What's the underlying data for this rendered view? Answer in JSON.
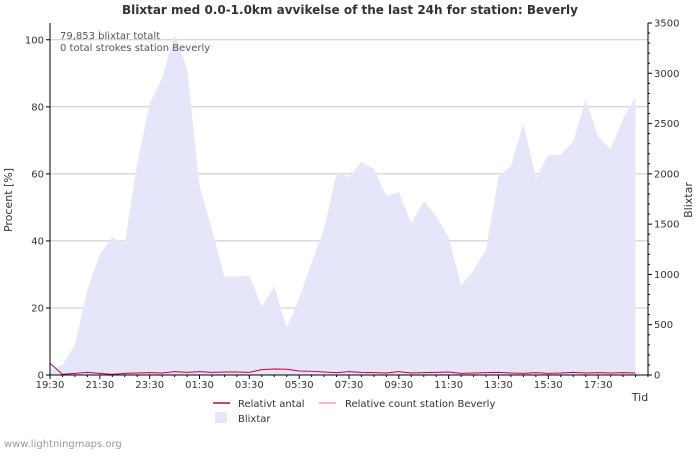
{
  "chart_data": {
    "type": "area",
    "title": "Blixtar med 0.0-1.0km avvikelse of the last 24h for station: Beverly",
    "ylabel_left": "Procent   [%]",
    "ylabel_right": "Blixtar",
    "xlabel": "Tid",
    "annotations": [
      "79,853 blixtar totalt",
      "0 total strokes station Beverly"
    ],
    "left_axis": {
      "min": 0,
      "max": 105,
      "ticks": [
        0,
        20,
        40,
        60,
        80,
        100
      ]
    },
    "right_axis": {
      "min": 0,
      "max": 3500,
      "ticks": [
        0,
        500,
        1000,
        1500,
        2000,
        2500,
        3000,
        3500
      ]
    },
    "x_ticks": [
      "19:30",
      "21:30",
      "23:30",
      "01:30",
      "03:30",
      "05:30",
      "07:30",
      "09:30",
      "11:30",
      "13:30",
      "15:30",
      "17:30"
    ],
    "legend": [
      {
        "label": "Relativt antal",
        "style": "line",
        "color": "#cc0033"
      },
      {
        "label": "Relative count station Beverly",
        "style": "line",
        "color": "#f0a0b0"
      },
      {
        "label": "Blixtar",
        "style": "area",
        "color": "#e6e6fa"
      }
    ],
    "series": [
      {
        "name": "Blixtar",
        "axis": "right",
        "x_hours": [
          0,
          0.5,
          1,
          1.5,
          2,
          2.5,
          3,
          3.5,
          4,
          4.5,
          5,
          5.5,
          6,
          6.5,
          7,
          7.5,
          8,
          8.5,
          9,
          9.5,
          10,
          10.5,
          11,
          11.5,
          12,
          12.5,
          13,
          13.5,
          14,
          14.5,
          15,
          15.5,
          16,
          16.5,
          17,
          17.5,
          18,
          18.5,
          19,
          19.5,
          20,
          20.5,
          21,
          21.5,
          22,
          22.5,
          23,
          23.5
        ],
        "values": [
          50,
          100,
          300,
          850,
          1200,
          1370,
          1310,
          2100,
          2700,
          2950,
          3380,
          3050,
          1880,
          1450,
          980,
          980,
          990,
          680,
          880,
          470,
          760,
          1120,
          1450,
          2010,
          1970,
          2120,
          2050,
          1780,
          1820,
          1510,
          1730,
          1580,
          1370,
          890,
          1040,
          1250,
          1970,
          2080,
          2500,
          1960,
          2190,
          2190,
          2320,
          2740,
          2370,
          2250,
          2550,
          2760
        ]
      },
      {
        "name": "Relativt antal",
        "axis": "left",
        "x_hours": [
          0,
          0.5,
          1,
          1.5,
          2,
          2.5,
          3,
          3.5,
          4,
          4.5,
          5,
          5.5,
          6,
          6.5,
          7,
          7.5,
          8,
          8.5,
          9,
          9.5,
          10,
          10.5,
          11,
          11.5,
          12,
          12.5,
          13,
          13.5,
          14,
          14.5,
          15,
          15.5,
          16,
          16.5,
          17,
          17.5,
          18,
          18.5,
          19,
          19.5,
          20,
          20.5,
          21,
          21.5,
          22,
          22.5,
          23,
          23.5
        ],
        "values": [
          3.5,
          0.2,
          0.5,
          0.8,
          0.5,
          0.2,
          0.5,
          0.6,
          0.7,
          0.6,
          1.0,
          0.8,
          1.0,
          0.8,
          0.9,
          0.9,
          0.8,
          1.6,
          1.8,
          1.7,
          1.2,
          1.1,
          0.9,
          0.7,
          1.0,
          0.8,
          0.7,
          0.6,
          1.0,
          0.6,
          0.7,
          0.8,
          0.9,
          0.5,
          0.6,
          0.7,
          0.8,
          0.6,
          0.5,
          0.7,
          0.5,
          0.6,
          0.8,
          0.6,
          0.7,
          0.6,
          0.7,
          0.6
        ]
      },
      {
        "name": "Relative count station Beverly",
        "axis": "left",
        "x_hours": [
          0,
          0.5,
          1,
          1.5,
          2,
          2.5,
          3,
          3.5,
          4,
          4.5,
          5,
          5.5,
          6,
          6.5,
          7,
          7.5,
          8,
          8.5,
          9,
          9.5,
          10,
          10.5,
          11,
          11.5,
          12,
          12.5,
          13,
          13.5,
          14,
          14.5,
          15,
          15.5,
          16,
          16.5,
          17,
          17.5,
          18,
          18.5,
          19,
          19.5,
          20,
          20.5,
          21,
          21.5,
          22,
          22.5,
          23,
          23.5
        ],
        "values": [
          0,
          0,
          0,
          0,
          0,
          0,
          0,
          0,
          0,
          0,
          0,
          0,
          0,
          0,
          0,
          0,
          0,
          0,
          0,
          0,
          0,
          0,
          0,
          0,
          0,
          0,
          0,
          0,
          0,
          0,
          0,
          0,
          0,
          0,
          0,
          0,
          0,
          0,
          0,
          0,
          0,
          0,
          0,
          0,
          0,
          0,
          0,
          0
        ]
      }
    ]
  },
  "footer": {
    "source": "www.lightningmaps.org"
  },
  "colors": {
    "area_fill": "#e6e6fa",
    "line_rel": "#cc0033",
    "line_station": "#f0a0b0",
    "grid": "#c8c8c8",
    "axis": "#000000",
    "text": "#333333"
  }
}
